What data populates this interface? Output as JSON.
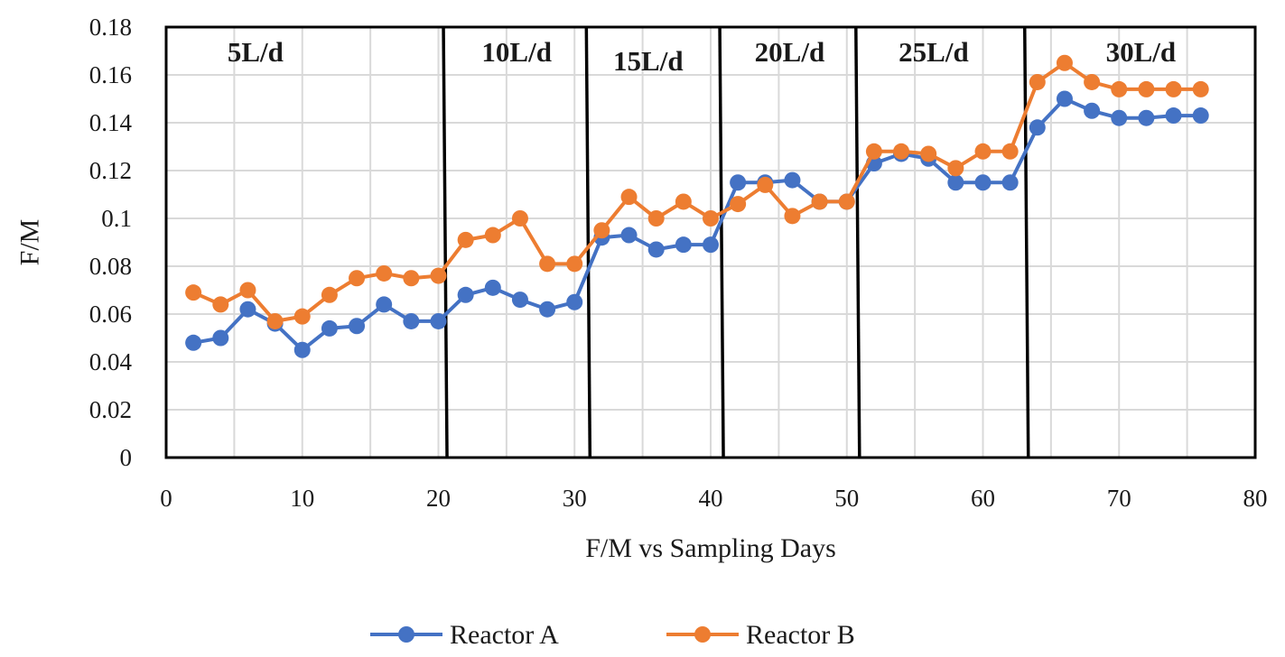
{
  "chart_data": {
    "type": "line",
    "title": "",
    "xlabel": "F/M vs Sampling Days",
    "ylabel": "F/M",
    "xlim": [
      0,
      80
    ],
    "ylim": [
      0,
      0.18
    ],
    "xticks": [
      0,
      10,
      20,
      30,
      40,
      50,
      60,
      70,
      80
    ],
    "yticks": [
      0,
      0.02,
      0.04,
      0.06,
      0.08,
      0.1,
      0.12,
      0.14,
      0.16,
      0.18
    ],
    "ytick_labels": [
      "0",
      "0.02",
      "0.04",
      "0.06",
      "0.08",
      "0.1",
      "0.12",
      "0.14",
      "0.16",
      "0.18"
    ],
    "grid": true,
    "legend_position": "bottom-center",
    "phases": [
      {
        "label": "5L/d",
        "start": 0,
        "end": 20.5
      },
      {
        "label": "10L/d",
        "start": 20.5,
        "end": 31
      },
      {
        "label": "15L/d",
        "start": 31,
        "end": 40.8
      },
      {
        "label": "20L/d",
        "start": 40.8,
        "end": 50.8
      },
      {
        "label": "25L/d",
        "start": 50.8,
        "end": 63.2
      },
      {
        "label": "30L/d",
        "start": 63.2,
        "end": 80
      }
    ],
    "series": [
      {
        "name": "Reactor A",
        "color": "#4472C4",
        "x": [
          2,
          4,
          6,
          8,
          10,
          12,
          14,
          16,
          18,
          20,
          22,
          24,
          26,
          28,
          30,
          32,
          34,
          36,
          38,
          40,
          42,
          44,
          46,
          48,
          50,
          52,
          54,
          56,
          58,
          60,
          62,
          64,
          66,
          68,
          70,
          72,
          74,
          76
        ],
        "values": [
          0.048,
          0.05,
          0.062,
          0.056,
          0.045,
          0.054,
          0.055,
          0.064,
          0.057,
          0.057,
          0.068,
          0.071,
          0.066,
          0.062,
          0.065,
          0.092,
          0.093,
          0.087,
          0.089,
          0.089,
          0.115,
          0.115,
          0.116,
          0.107,
          0.107,
          0.123,
          0.127,
          0.125,
          0.115,
          0.115,
          0.115,
          0.138,
          0.15,
          0.145,
          0.142,
          0.142,
          0.143,
          0.143
        ]
      },
      {
        "name": "Reactor B",
        "color": "#ED7D31",
        "x": [
          2,
          4,
          6,
          8,
          10,
          12,
          14,
          16,
          18,
          20,
          22,
          24,
          26,
          28,
          30,
          32,
          34,
          36,
          38,
          40,
          42,
          44,
          46,
          48,
          50,
          52,
          54,
          56,
          58,
          60,
          62,
          64,
          66,
          68,
          70,
          72,
          74,
          76
        ],
        "values": [
          0.069,
          0.064,
          0.07,
          0.057,
          0.059,
          0.068,
          0.075,
          0.077,
          0.075,
          0.076,
          0.091,
          0.093,
          0.1,
          0.081,
          0.081,
          0.095,
          0.109,
          0.1,
          0.107,
          0.1,
          0.106,
          0.114,
          0.101,
          0.107,
          0.107,
          0.128,
          0.128,
          0.127,
          0.121,
          0.128,
          0.128,
          0.157,
          0.165,
          0.157,
          0.154,
          0.154,
          0.154,
          0.154
        ]
      }
    ]
  }
}
